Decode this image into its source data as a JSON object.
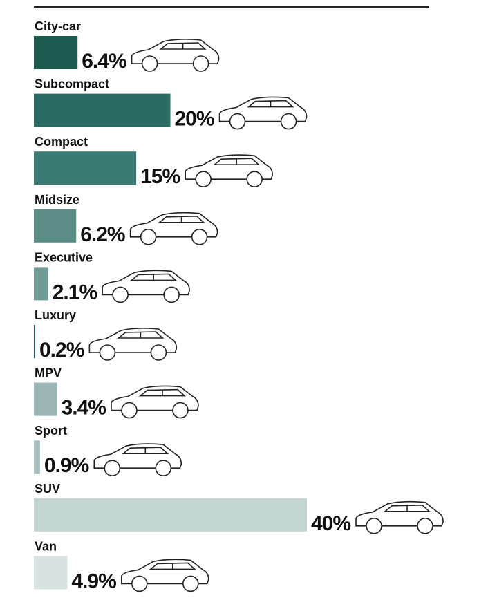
{
  "chart_data": {
    "type": "bar",
    "categories": [
      "City-car",
      "Subcompact",
      "Compact",
      "Midsize",
      "Executive",
      "Luxury",
      "MPV",
      "Sport",
      "SUV",
      "Van"
    ],
    "values": [
      6.4,
      20,
      15,
      6.2,
      2.1,
      0.2,
      3.4,
      0.9,
      40,
      4.9
    ],
    "value_labels": [
      "6.4%",
      "20%",
      "15%",
      "6.2%",
      "2.1%",
      "0.2%",
      "3.4%",
      "0.9%",
      "40%",
      "4.9%"
    ],
    "colors": [
      "#1c5a50",
      "#2a6a62",
      "#3b7a72",
      "#5a8c86",
      "#6f9a95",
      "#2a5a55",
      "#9ab5b3",
      "#a9c0be",
      "#c5d5d3",
      "#d8e2e0"
    ]
  }
}
